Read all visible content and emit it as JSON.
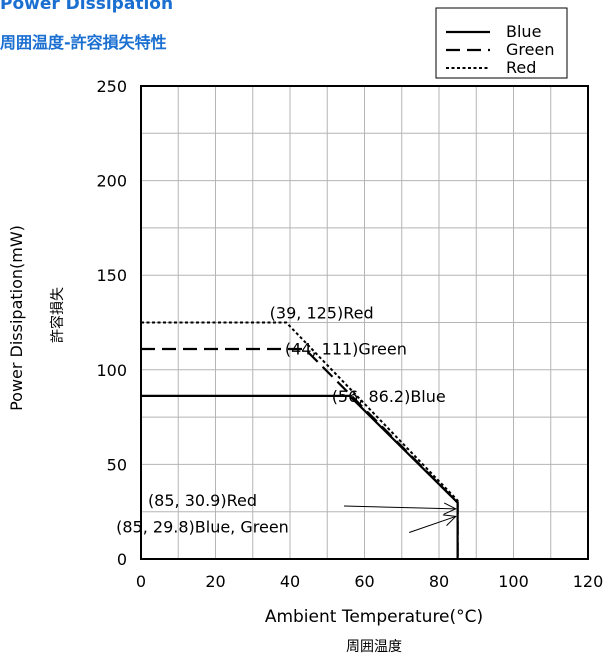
{
  "title": "Power Dissipation",
  "subtitle": "周囲温度-許容損失特性",
  "chart_data": {
    "type": "line",
    "xlabel": "Ambient Temperature(°C)",
    "xlabel_jp": "周囲温度",
    "ylabel": "Power Dissipation(mW)",
    "ylabel_jp": "許容損失",
    "xlim": [
      0,
      120
    ],
    "ylim": [
      0,
      250
    ],
    "xticks": [
      0,
      20,
      40,
      60,
      80,
      100,
      120
    ],
    "yticks": [
      0,
      50,
      100,
      150,
      200,
      250
    ],
    "grid": true,
    "legend_position": "top-right",
    "series": [
      {
        "name": "Blue",
        "style": "solid",
        "points": [
          [
            0,
            86.2
          ],
          [
            56,
            86.2
          ],
          [
            85,
            29.8
          ],
          [
            85,
            0
          ]
        ]
      },
      {
        "name": "Green",
        "style": "dashed",
        "points": [
          [
            0,
            111
          ],
          [
            44,
            111
          ],
          [
            85,
            29.8
          ],
          [
            85,
            0
          ]
        ]
      },
      {
        "name": "Red",
        "style": "dotted",
        "points": [
          [
            0,
            125
          ],
          [
            39,
            125
          ],
          [
            85,
            30.9
          ],
          [
            85,
            0
          ]
        ]
      }
    ],
    "annotations": [
      {
        "text": "(39, 125)Red",
        "x": 48.5,
        "y": 127
      },
      {
        "text": "(44, 111)Green",
        "x": 55,
        "y": 108
      },
      {
        "text": "(56, 86.2)Blue",
        "x": 66.5,
        "y": 83
      },
      {
        "text": "(85, 30.9)Red",
        "x": 16.5,
        "y": 28
      },
      {
        "text": "(85, 29.8)Blue, Green",
        "x": 16.5,
        "y": 14
      }
    ],
    "arrows": [
      {
        "from": [
          54.5,
          28
        ],
        "to": [
          84.5,
          26.5
        ]
      },
      {
        "from": [
          72,
          14
        ],
        "to": [
          84.5,
          22.5
        ]
      }
    ]
  }
}
